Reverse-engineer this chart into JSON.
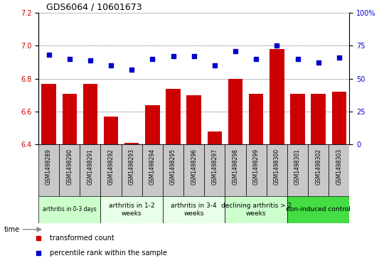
{
  "title": "GDS6064 / 10601673",
  "samples": [
    "GSM1498289",
    "GSM1498290",
    "GSM1498291",
    "GSM1498292",
    "GSM1498293",
    "GSM1498294",
    "GSM1498295",
    "GSM1498296",
    "GSM1498297",
    "GSM1498298",
    "GSM1498299",
    "GSM1498300",
    "GSM1498301",
    "GSM1498302",
    "GSM1498303"
  ],
  "bar_values": [
    6.77,
    6.71,
    6.77,
    6.57,
    6.41,
    6.64,
    6.74,
    6.7,
    6.48,
    6.8,
    6.71,
    6.98,
    6.71,
    6.71,
    6.72
  ],
  "percentile_values": [
    68,
    65,
    64,
    60,
    57,
    65,
    67,
    67,
    60,
    71,
    65,
    75,
    65,
    62,
    66
  ],
  "ylim": [
    6.4,
    7.2
  ],
  "yticks": [
    6.4,
    6.6,
    6.8,
    7.0,
    7.2
  ],
  "right_ylim": [
    0,
    100
  ],
  "right_yticks": [
    0,
    25,
    50,
    75,
    100
  ],
  "bar_color": "#cc0000",
  "dot_color": "#0000cc",
  "groups": [
    {
      "label": "arthritis in 0-3 days",
      "start": 0,
      "end": 3,
      "color": "#ccffcc",
      "small": true
    },
    {
      "label": "arthritis in 1-2\nweeks",
      "start": 3,
      "end": 6,
      "color": "#e8ffe8",
      "small": false
    },
    {
      "label": "arthritis in 3-4\nweeks",
      "start": 6,
      "end": 9,
      "color": "#e8ffe8",
      "small": false
    },
    {
      "label": "declining arthritis > 2\nweeks",
      "start": 9,
      "end": 12,
      "color": "#ccffcc",
      "small": false
    },
    {
      "label": "non-induced control",
      "start": 12,
      "end": 15,
      "color": "#44dd44",
      "small": false
    }
  ],
  "gsm_bg": "#c8c8c8",
  "legend_items": [
    {
      "label": "transformed count",
      "color": "#cc0000"
    },
    {
      "label": "percentile rank within the sample",
      "color": "#0000cc"
    }
  ],
  "time_arrow_color": "#888888"
}
